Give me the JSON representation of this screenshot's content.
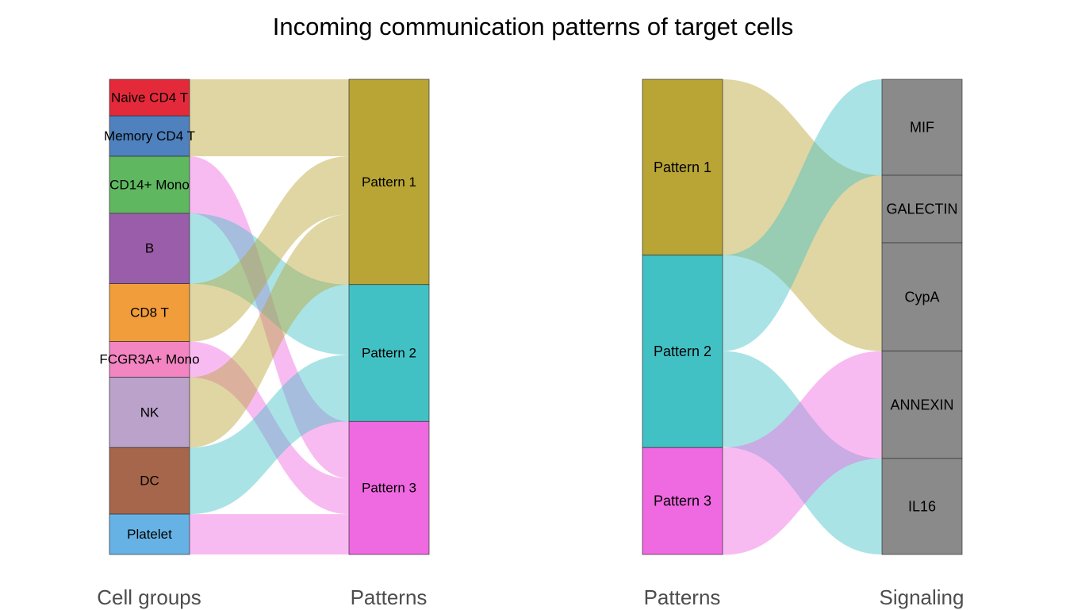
{
  "title": "Incoming communication patterns of target cells",
  "axis_labels": {
    "cell_groups": "Cell groups",
    "patterns_left": "Patterns",
    "patterns_right": "Patterns",
    "signaling": "Signaling"
  },
  "colors": {
    "pattern_1": "#B9A535",
    "pattern_2": "#42C1C5",
    "pattern_3": "#EF69E1",
    "signaling_node": "#8A8A8A"
  },
  "left_panel": {
    "cell_groups": [
      {
        "name": "Naive CD4 T",
        "color": "#E42A3A",
        "weight": 0.077,
        "pattern": "Pattern 1"
      },
      {
        "name": "Memory CD4 T",
        "color": "#4E81BD",
        "weight": 0.085,
        "pattern": "Pattern 1"
      },
      {
        "name": "CD14+ Mono",
        "color": "#5FB760",
        "weight": 0.12,
        "pattern": "Pattern 3"
      },
      {
        "name": "B",
        "color": "#9A5DA9",
        "weight": 0.148,
        "pattern": "Pattern 2"
      },
      {
        "name": "CD8 T",
        "color": "#F19D3B",
        "weight": 0.122,
        "pattern": "Pattern 1"
      },
      {
        "name": "FCGR3A+ Mono",
        "color": "#F285C2",
        "weight": 0.075,
        "pattern": "Pattern 3"
      },
      {
        "name": "NK",
        "color": "#BBA2CB",
        "weight": 0.148,
        "pattern": "Pattern 1"
      },
      {
        "name": "DC",
        "color": "#A6664C",
        "weight": 0.14,
        "pattern": "Pattern 2"
      },
      {
        "name": "Platelet",
        "color": "#66B2E4",
        "weight": 0.085,
        "pattern": "Pattern 3"
      }
    ],
    "patterns": [
      {
        "name": "Pattern 1",
        "weight": 0.432
      },
      {
        "name": "Pattern 2",
        "weight": 0.288
      },
      {
        "name": "Pattern 3",
        "weight": 0.28
      }
    ]
  },
  "right_panel": {
    "patterns": [
      {
        "name": "Pattern 1",
        "weight": 0.37
      },
      {
        "name": "Pattern 2",
        "weight": 0.405
      },
      {
        "name": "Pattern 3",
        "weight": 0.225
      }
    ],
    "signaling": [
      {
        "name": "MIF",
        "weight": 0.202
      },
      {
        "name": "GALECTIN",
        "weight": 0.142
      },
      {
        "name": "CypA",
        "weight": 0.228
      },
      {
        "name": "ANNEXIN",
        "weight": 0.226
      },
      {
        "name": "IL16",
        "weight": 0.202
      }
    ],
    "flows": [
      {
        "from": "Pattern 1",
        "to": "GALECTIN",
        "value": 0.142
      },
      {
        "from": "Pattern 1",
        "to": "CypA",
        "value": 0.228
      },
      {
        "from": "Pattern 2",
        "to": "MIF",
        "value": 0.202
      },
      {
        "from": "Pattern 2",
        "to": "IL16",
        "value": 0.202
      },
      {
        "from": "Pattern 3",
        "to": "ANNEXIN",
        "value": 0.226
      }
    ]
  }
}
